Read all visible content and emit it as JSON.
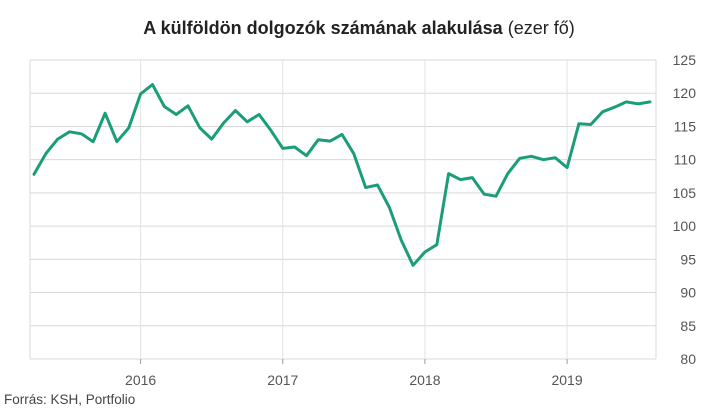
{
  "chart_data": {
    "type": "line",
    "title_bold": "A külföldön dolgozók számának alakulása",
    "title_unit": "(ezer fő)",
    "source": "Forrás: KSH, Portfolio",
    "ylim": [
      80,
      125
    ],
    "yticks": [
      80,
      85,
      90,
      95,
      100,
      105,
      110,
      115,
      120,
      125
    ],
    "xticks": [
      "2016",
      "2017",
      "2018",
      "2019"
    ],
    "grid": true,
    "line_color": "#1a9e7a",
    "series": [
      {
        "x": [
          "2015-04",
          "2015-05",
          "2015-06",
          "2015-07",
          "2015-08",
          "2015-09",
          "2015-10",
          "2015-11",
          "2015-12",
          "2016-01",
          "2016-02",
          "2016-03",
          "2016-04",
          "2016-05",
          "2016-06",
          "2016-07",
          "2016-08",
          "2016-09",
          "2016-10",
          "2016-11",
          "2016-12",
          "2017-01",
          "2017-02",
          "2017-03",
          "2017-04",
          "2017-05",
          "2017-06",
          "2017-07",
          "2017-08",
          "2017-09",
          "2017-10",
          "2017-11",
          "2017-12",
          "2018-01",
          "2018-02",
          "2018-03",
          "2018-04",
          "2018-05",
          "2018-06",
          "2018-07",
          "2018-08",
          "2018-09",
          "2018-10",
          "2018-11",
          "2018-12",
          "2019-01",
          "2019-02",
          "2019-03",
          "2019-04",
          "2019-05",
          "2019-06",
          "2019-07",
          "2019-08"
        ],
        "values": [
          107.8,
          110.9,
          113.1,
          114.2,
          113.9,
          112.7,
          117.0,
          112.7,
          114.8,
          119.9,
          121.3,
          118.0,
          116.8,
          118.1,
          114.8,
          113.1,
          115.5,
          117.4,
          115.7,
          116.8,
          114.4,
          111.7,
          111.9,
          110.6,
          113.0,
          112.8,
          113.8,
          110.9,
          105.8,
          106.2,
          102.8,
          97.9,
          94.1,
          96.1,
          97.2,
          107.9,
          107.0,
          107.3,
          104.8,
          104.5,
          107.9,
          110.2,
          110.5,
          110.0,
          110.3,
          108.8,
          115.4,
          115.3,
          117.2,
          117.9,
          118.7,
          118.4,
          118.7
        ]
      }
    ]
  }
}
